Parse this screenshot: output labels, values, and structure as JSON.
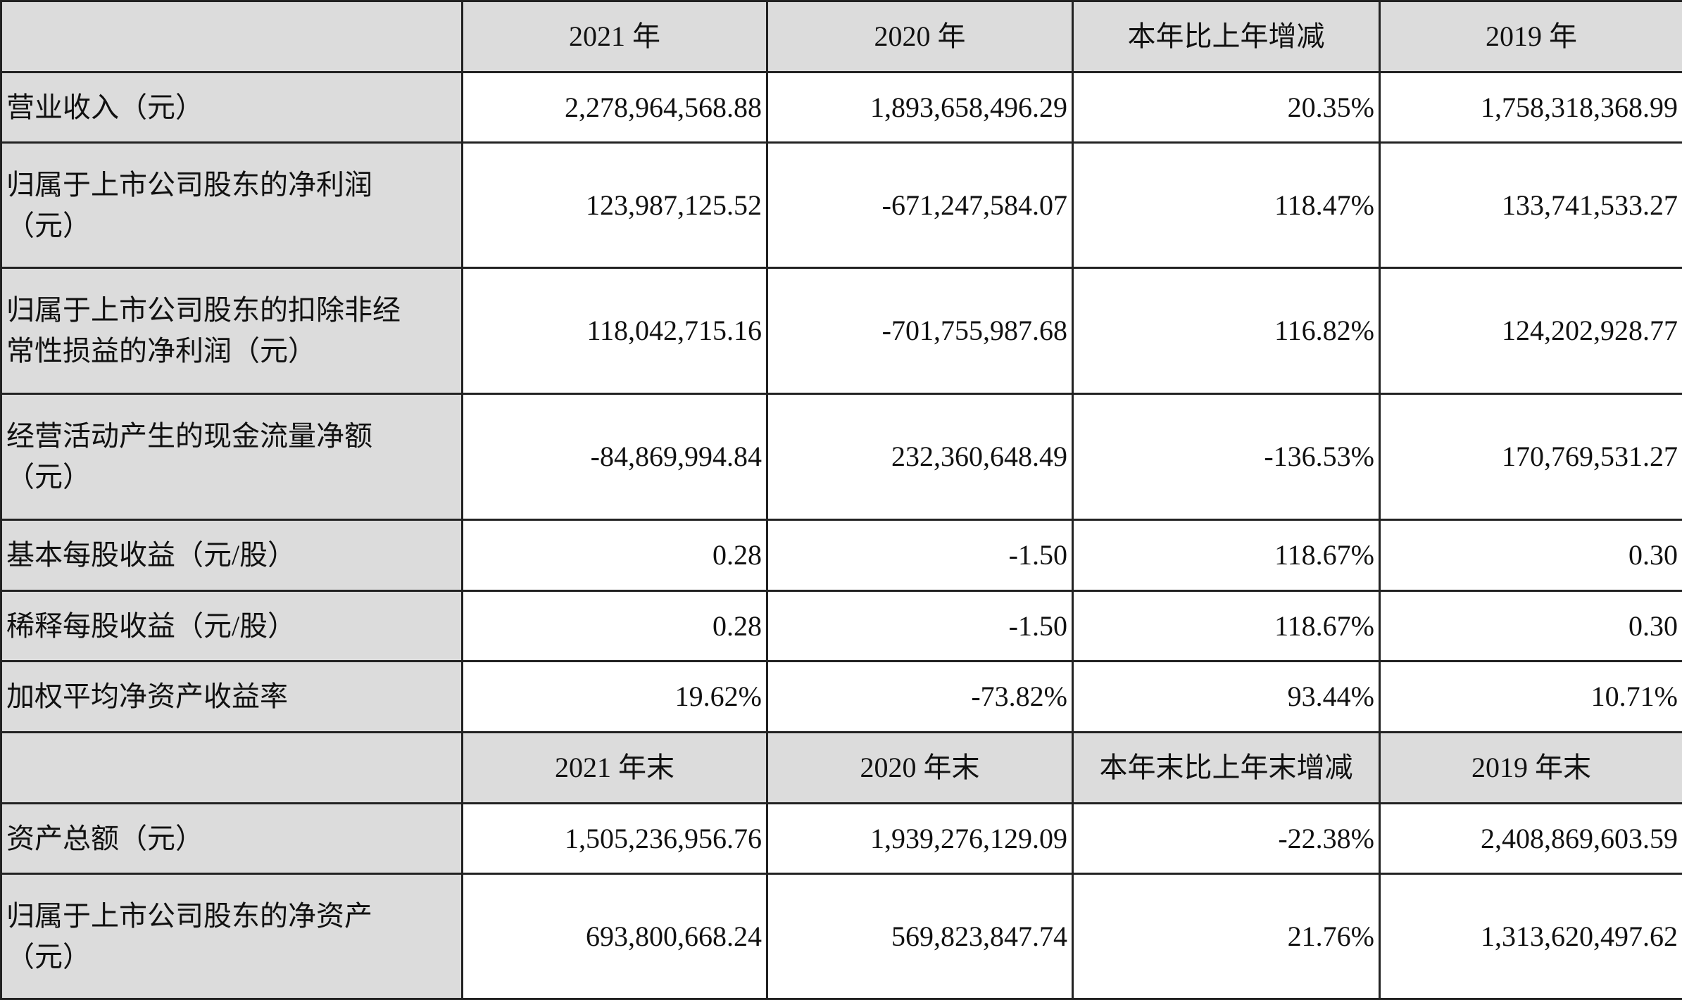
{
  "table": {
    "header1": [
      "",
      "2021 年",
      "2020 年",
      "本年比上年增减",
      "2019 年"
    ],
    "rows1": [
      {
        "label": "营业收入（元）",
        "values": [
          "2,278,964,568.88",
          "1,893,658,496.29",
          "20.35%",
          "1,758,318,368.99"
        ]
      },
      {
        "label": "归属于上市公司股东的净利润（元）",
        "values": [
          "123,987,125.52",
          "-671,247,584.07",
          "118.47%",
          "133,741,533.27"
        ]
      },
      {
        "label": "归属于上市公司股东的扣除非经常性损益的净利润（元）",
        "values": [
          "118,042,715.16",
          "-701,755,987.68",
          "116.82%",
          "124,202,928.77"
        ]
      },
      {
        "label": "经营活动产生的现金流量净额（元）",
        "values": [
          "-84,869,994.84",
          "232,360,648.49",
          "-136.53%",
          "170,769,531.27"
        ]
      },
      {
        "label": "基本每股收益（元/股）",
        "values": [
          "0.28",
          "-1.50",
          "118.67%",
          "0.30"
        ]
      },
      {
        "label": "稀释每股收益（元/股）",
        "values": [
          "0.28",
          "-1.50",
          "118.67%",
          "0.30"
        ]
      },
      {
        "label": "加权平均净资产收益率",
        "values": [
          "19.62%",
          "-73.82%",
          "93.44%",
          "10.71%"
        ]
      }
    ],
    "header2": [
      "",
      "2021 年末",
      "2020 年末",
      "本年末比上年末增减",
      "2019 年末"
    ],
    "rows2": [
      {
        "label": "资产总额（元）",
        "values": [
          "1,505,236,956.76",
          "1,939,276,129.09",
          "-22.38%",
          "2,408,869,603.59"
        ]
      },
      {
        "label": "归属于上市公司股东的净资产（元）",
        "values": [
          "693,800,668.24",
          "569,823,847.74",
          "21.76%",
          "1,313,620,497.62"
        ]
      }
    ]
  }
}
